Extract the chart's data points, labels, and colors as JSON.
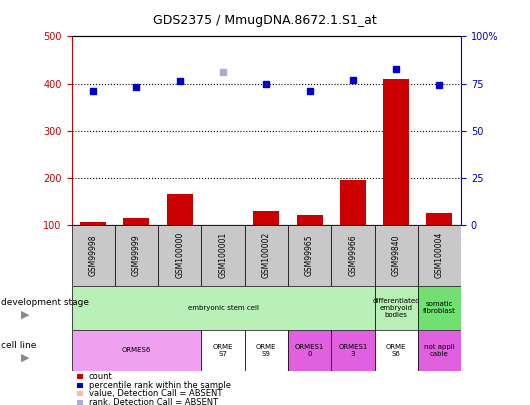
{
  "title": "GDS2375 / MmugDNA.8672.1.S1_at",
  "samples": [
    "GSM99998",
    "GSM99999",
    "GSM100000",
    "GSM100001",
    "GSM100002",
    "GSM99965",
    "GSM99966",
    "GSM99840",
    "GSM100004"
  ],
  "count_values": [
    105,
    115,
    165,
    100,
    130,
    120,
    195,
    410,
    125
  ],
  "count_absent": [
    false,
    false,
    false,
    true,
    false,
    false,
    false,
    false,
    false
  ],
  "rank_values": [
    385,
    392,
    405,
    425,
    400,
    385,
    408,
    430,
    396
  ],
  "rank_absent": [
    false,
    false,
    false,
    true,
    false,
    false,
    false,
    false,
    false
  ],
  "ylim": [
    100,
    500
  ],
  "yticks_left": [
    100,
    200,
    300,
    400,
    500
  ],
  "yticks_right_vals": [
    100,
    200,
    300,
    400,
    500
  ],
  "ytick_labels_right": [
    "0",
    "25",
    "50",
    "75",
    "100%"
  ],
  "dev_stage_groups": [
    {
      "label": "embryonic stem cell",
      "start": 0,
      "end": 7,
      "color": "#b8f0b8"
    },
    {
      "label": "differentiated\nembryoid\nbodies",
      "start": 7,
      "end": 8,
      "color": "#b8f0b8"
    },
    {
      "label": "somatic\nfibroblast",
      "start": 8,
      "end": 9,
      "color": "#70e070"
    }
  ],
  "cell_line_groups": [
    {
      "label": "ORMES6",
      "start": 0,
      "end": 3,
      "color": "#f0a0f0"
    },
    {
      "label": "ORME\nS7",
      "start": 3,
      "end": 4,
      "color": "#ffffff"
    },
    {
      "label": "ORME\nS9",
      "start": 4,
      "end": 5,
      "color": "#ffffff"
    },
    {
      "label": "ORMES1\n0",
      "start": 5,
      "end": 6,
      "color": "#e060e0"
    },
    {
      "label": "ORMES1\n3",
      "start": 6,
      "end": 7,
      "color": "#e060e0"
    },
    {
      "label": "ORME\nS6",
      "start": 7,
      "end": 8,
      "color": "#ffffff"
    },
    {
      "label": "not appli\ncable",
      "start": 8,
      "end": 9,
      "color": "#e060e0"
    }
  ],
  "bar_color_normal": "#cc0000",
  "bar_color_absent": "#ffb0b0",
  "dot_color_normal": "#0000cc",
  "dot_color_absent": "#aaaadd",
  "legend_labels": [
    "count",
    "percentile rank within the sample",
    "value, Detection Call = ABSENT",
    "rank, Detection Call = ABSENT"
  ],
  "legend_colors": [
    "#cc0000",
    "#0000cc",
    "#ffb0b0",
    "#aaaadd"
  ],
  "left_tick_color": "#cc0000",
  "right_tick_color": "#0000cc"
}
